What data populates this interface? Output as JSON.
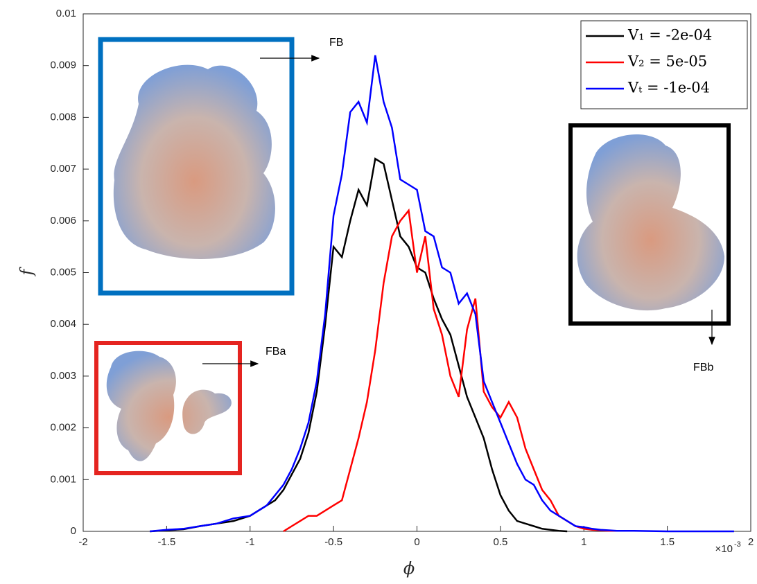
{
  "chart_data": {
    "type": "line",
    "xlabel": "ϕ",
    "ylabel": "f",
    "x_scale_label": "×10",
    "x_scale_exponent": "-3",
    "xlim": [
      -2,
      2
    ],
    "ylim": [
      0,
      0.01
    ],
    "xticks": [
      -2,
      -1.5,
      -1,
      -0.5,
      0,
      0.5,
      1,
      1.5,
      2
    ],
    "yticks": [
      0,
      0.001,
      0.002,
      0.003,
      0.004,
      0.005,
      0.006,
      0.007,
      0.008,
      0.009,
      0.01
    ],
    "legend_position": "upper right",
    "annotations": [
      "FB",
      "FBa",
      "FBb"
    ],
    "x": [
      -1.6,
      -1.5,
      -1.4,
      -1.3,
      -1.2,
      -1.1,
      -1.0,
      -0.95,
      -0.9,
      -0.85,
      -0.8,
      -0.75,
      -0.7,
      -0.65,
      -0.6,
      -0.55,
      -0.5,
      -0.45,
      -0.4,
      -0.35,
      -0.3,
      -0.25,
      -0.2,
      -0.15,
      -0.1,
      -0.05,
      0,
      0.05,
      0.1,
      0.15,
      0.2,
      0.25,
      0.3,
      0.35,
      0.4,
      0.45,
      0.5,
      0.55,
      0.6,
      0.65,
      0.7,
      0.75,
      0.8,
      0.85,
      0.9,
      0.95,
      1.0,
      1.05,
      1.1,
      1.15,
      1.2,
      1.3,
      1.4,
      1.5,
      1.6,
      1.7,
      1.8,
      1.9
    ],
    "series": [
      {
        "name": "V₁ = -2e-04",
        "color": "#000000",
        "values": [
          0,
          2e-05,
          4e-05,
          0.0001,
          0.00015,
          0.0002,
          0.0003,
          0.0004,
          0.0005,
          0.0006,
          0.0008,
          0.0011,
          0.0014,
          0.0019,
          0.0027,
          0.004,
          0.0055,
          0.0053,
          0.006,
          0.0066,
          0.0063,
          0.0072,
          0.0071,
          0.0064,
          0.0057,
          0.0055,
          0.0051,
          0.005,
          0.0045,
          0.0041,
          0.0038,
          0.0032,
          0.0026,
          0.0022,
          0.0018,
          0.0012,
          0.0007,
          0.0004,
          0.0002,
          0.00015,
          0.0001,
          5e-05,
          3e-05,
          1e-05,
          0,
          null,
          null,
          null,
          null,
          null,
          null,
          null,
          null,
          null,
          null,
          null,
          null,
          null
        ]
      },
      {
        "name": "V₂ = 5e-05",
        "color": "#ff0000",
        "values": [
          null,
          null,
          null,
          null,
          null,
          null,
          null,
          null,
          null,
          null,
          0,
          0.0001,
          0.0002,
          0.0003,
          0.0003,
          0.0004,
          0.0005,
          0.0006,
          0.0012,
          0.0018,
          0.0025,
          0.0035,
          0.0048,
          0.0057,
          0.006,
          0.0062,
          0.005,
          0.0057,
          0.0043,
          0.0038,
          0.003,
          0.0026,
          0.0039,
          0.0045,
          0.0027,
          0.0024,
          0.0022,
          0.0025,
          0.0022,
          0.0016,
          0.0012,
          0.0008,
          0.0006,
          0.0003,
          0.0002,
          0.0001,
          5e-05,
          3e-05,
          2e-05,
          1e-05,
          1e-05,
          null,
          null,
          null,
          null,
          null,
          null,
          null
        ]
      },
      {
        "name": "Vₜ = -1e-04",
        "color": "#0000ff",
        "values": [
          0,
          3e-05,
          5e-05,
          0.0001,
          0.00015,
          0.00025,
          0.0003,
          0.0004,
          0.0005,
          0.0007,
          0.0009,
          0.0012,
          0.0016,
          0.0021,
          0.0029,
          0.0042,
          0.0061,
          0.0069,
          0.0081,
          0.0083,
          0.0079,
          0.0092,
          0.0083,
          0.0078,
          0.0068,
          0.0067,
          0.0066,
          0.0058,
          0.0057,
          0.0051,
          0.005,
          0.0044,
          0.0046,
          0.0042,
          0.0029,
          0.0025,
          0.0021,
          0.0017,
          0.0013,
          0.001,
          0.0009,
          0.0006,
          0.0004,
          0.0003,
          0.0002,
          0.0001,
          8e-05,
          5e-05,
          3e-05,
          2e-05,
          1e-05,
          1e-05,
          5e-06,
          0,
          0,
          0,
          0,
          0
        ]
      }
    ]
  }
}
